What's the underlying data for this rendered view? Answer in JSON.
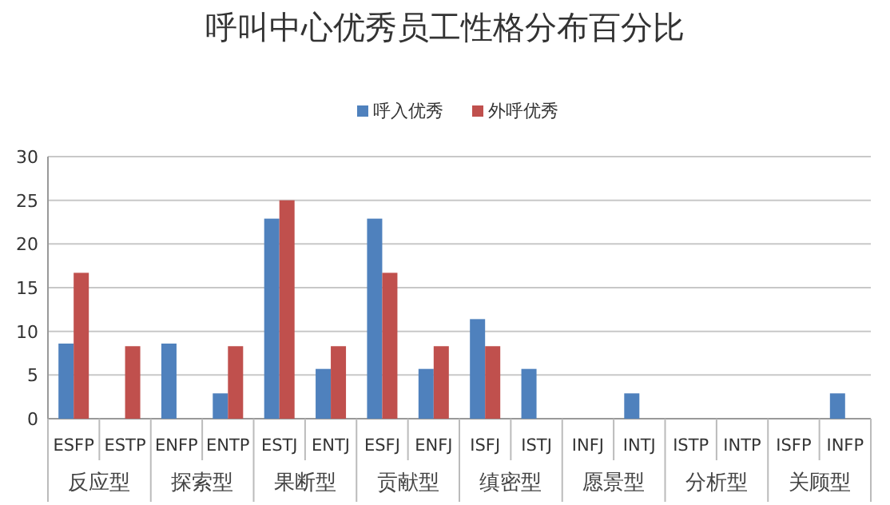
{
  "chart_data": {
    "type": "bar",
    "title": "呼叫中心优秀员工性格分布百分比",
    "categories": [
      "ESFP",
      "ESTP",
      "ENFP",
      "ENTP",
      "ESTJ",
      "ENTJ",
      "ESFJ",
      "ENFJ",
      "ISFJ",
      "ISTJ",
      "INFJ",
      "INTJ",
      "ISTP",
      "INTP",
      "ISFP",
      "INFP"
    ],
    "annotations": [
      "反应型",
      "探索型",
      "果断型",
      "贡献型",
      "缜密型",
      "愿景型",
      "分析型",
      "关顾型"
    ],
    "series": [
      {
        "name": "呼入优秀",
        "color": "#4f81bd",
        "values": [
          8.6,
          0,
          8.6,
          2.9,
          22.9,
          5.7,
          22.9,
          5.7,
          11.4,
          5.7,
          0,
          2.9,
          0,
          0,
          0,
          2.9
        ]
      },
      {
        "name": "外呼优秀",
        "color": "#c0504d",
        "values": [
          16.7,
          8.3,
          0,
          8.3,
          25,
          8.3,
          16.7,
          8.3,
          8.3,
          0,
          0,
          0,
          0,
          0,
          0,
          0
        ]
      }
    ],
    "ylim": [
      0,
      30
    ],
    "yticks": [
      0,
      5,
      10,
      15,
      20,
      25,
      30
    ],
    "grid": "y",
    "legend": "top"
  }
}
